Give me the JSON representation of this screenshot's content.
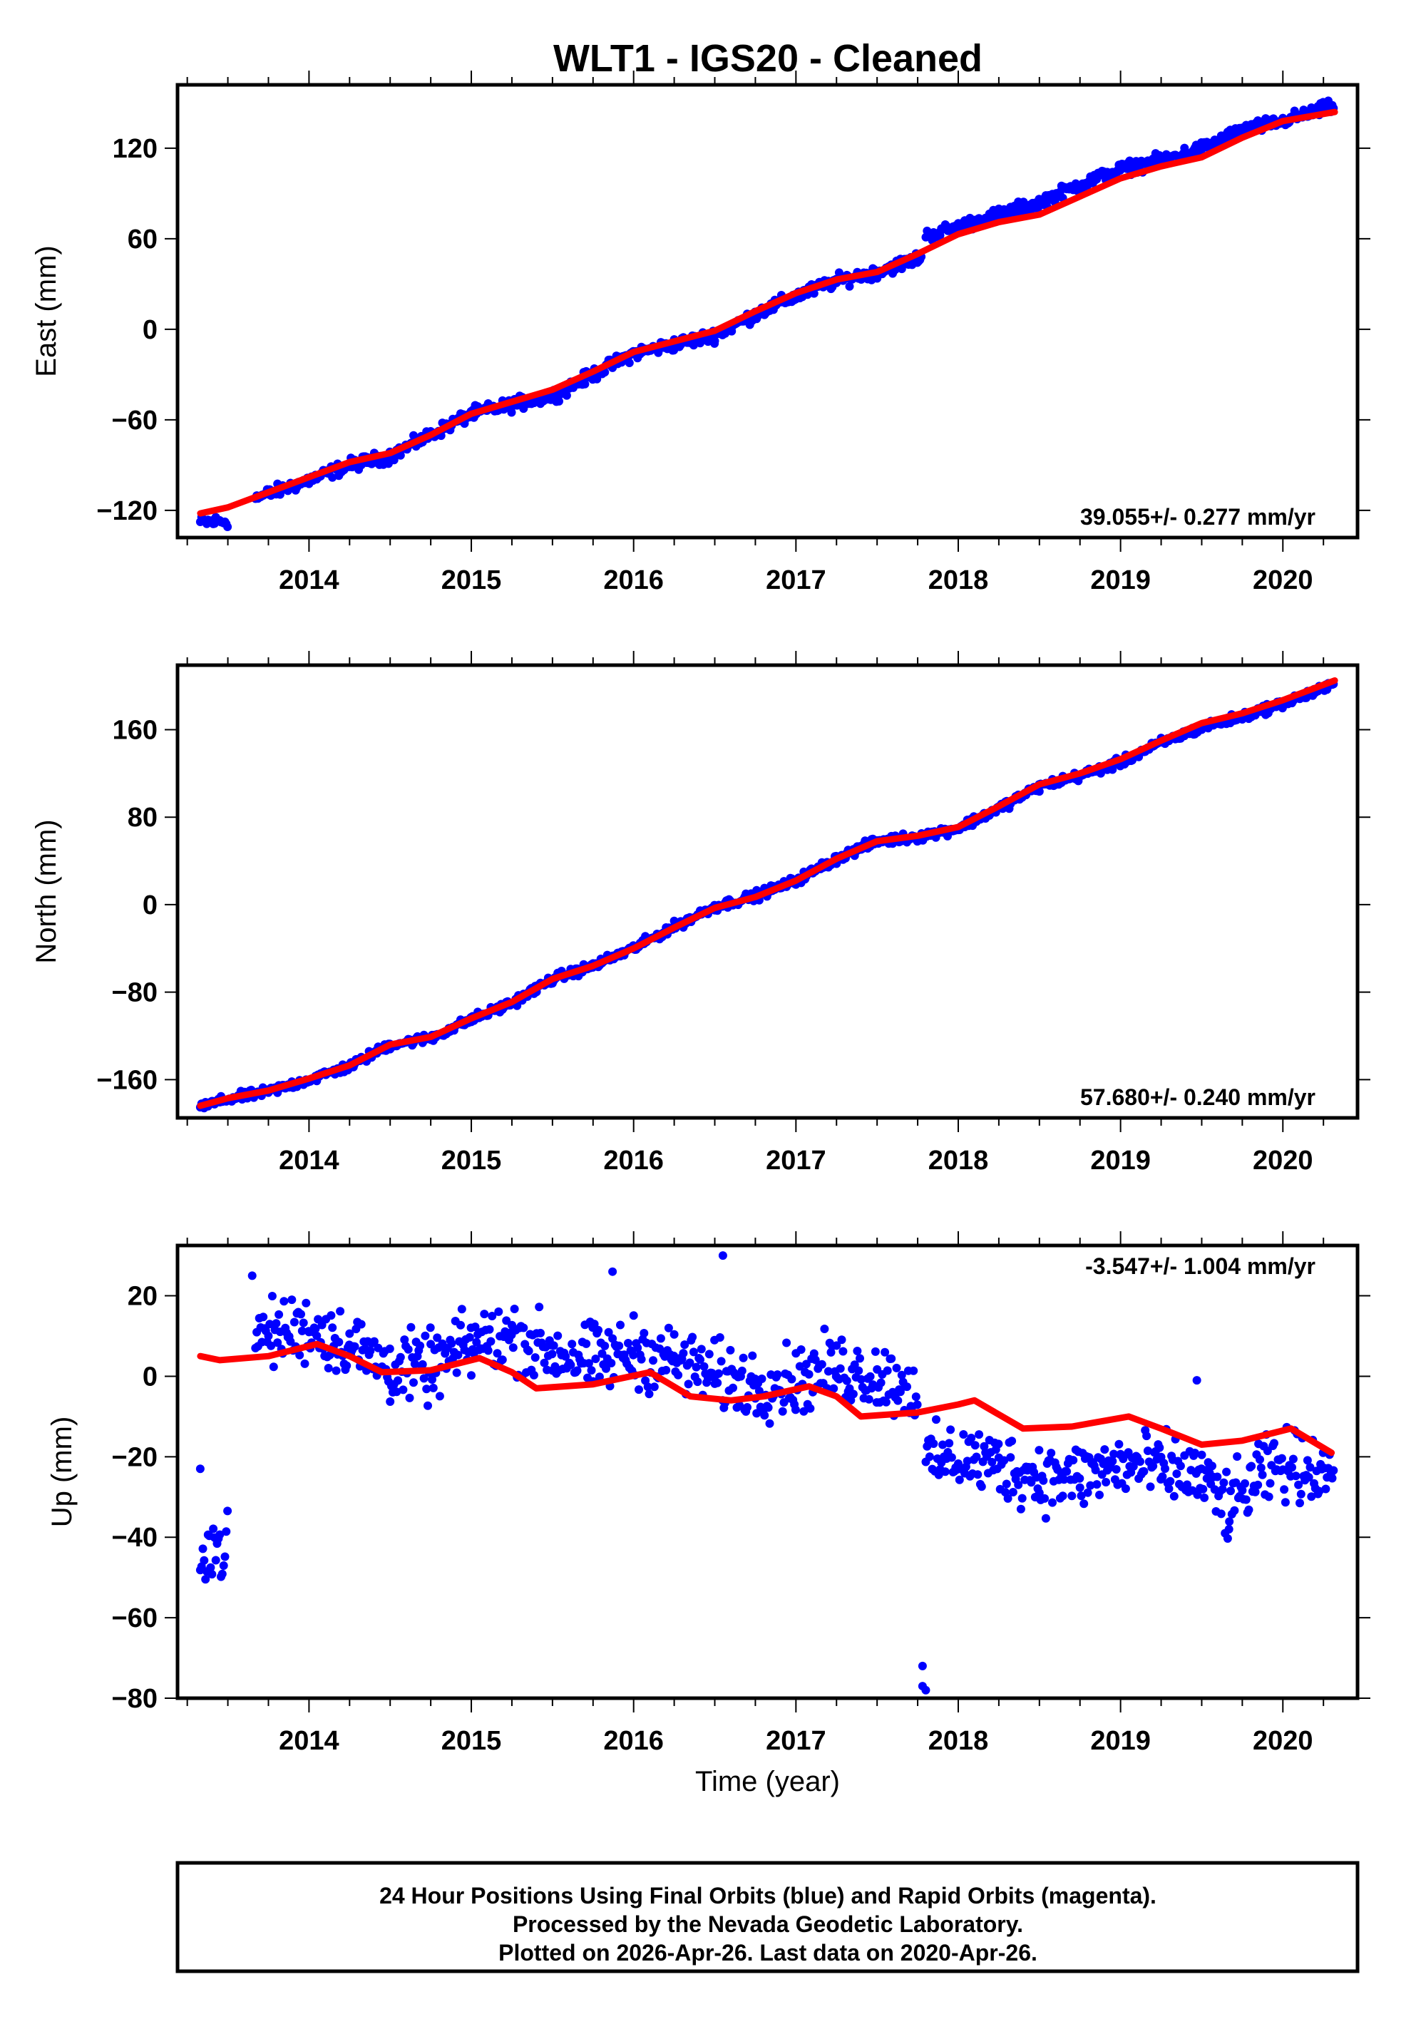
{
  "chart_data": [
    {
      "type": "scatter",
      "title": "WLT1  - IGS20 - Cleaned",
      "ylabel": "East (mm)",
      "xlabel": "",
      "rate": "39.055+/- 0.277 mm/yr",
      "xlim": [
        2013.19,
        2020.46
      ],
      "ylim": [
        -138,
        162
      ],
      "yticks": [
        -120,
        -60,
        0,
        60,
        120
      ],
      "xticks": [
        2014,
        2015,
        2016,
        2017,
        2018,
        2019,
        2020
      ],
      "noise": 3,
      "observed_color": "#0000ff",
      "model_color": "#ff0000",
      "observed": [
        [
          2013.33,
          -128
        ],
        [
          2013.5,
          -127
        ],
        null,
        [
          2013.67,
          -112
        ],
        [
          2014.0,
          -100
        ],
        [
          2014.25,
          -90
        ],
        [
          2014.5,
          -84
        ],
        [
          2014.75,
          -70
        ],
        [
          2015.0,
          -56
        ],
        [
          2015.25,
          -50
        ],
        [
          2015.5,
          -44
        ],
        [
          2015.75,
          -30
        ],
        [
          2016.0,
          -16
        ],
        [
          2016.25,
          -10
        ],
        [
          2016.5,
          -4
        ],
        [
          2016.75,
          10
        ],
        [
          2017.0,
          22
        ],
        [
          2017.25,
          32
        ],
        [
          2017.5,
          38
        ],
        [
          2017.78,
          48
        ],
        null,
        [
          2017.8,
          62
        ],
        [
          2018.0,
          68
        ],
        [
          2018.25,
          76
        ],
        [
          2018.5,
          84
        ],
        [
          2018.75,
          96
        ],
        [
          2019.0,
          106
        ],
        [
          2019.25,
          112
        ],
        [
          2019.5,
          120
        ],
        [
          2019.75,
          132
        ],
        [
          2020.0,
          138
        ],
        [
          2020.32,
          148
        ]
      ],
      "model": [
        [
          2013.33,
          -122
        ],
        [
          2013.5,
          -118
        ],
        [
          2013.75,
          -108
        ],
        [
          2014.0,
          -98
        ],
        [
          2014.25,
          -88
        ],
        [
          2014.5,
          -82
        ],
        [
          2014.75,
          -70
        ],
        [
          2015.0,
          -56
        ],
        [
          2015.25,
          -48
        ],
        [
          2015.5,
          -40
        ],
        [
          2015.75,
          -28
        ],
        [
          2016.0,
          -15
        ],
        [
          2016.25,
          -8
        ],
        [
          2016.5,
          -1
        ],
        [
          2016.75,
          12
        ],
        [
          2017.0,
          24
        ],
        [
          2017.25,
          33
        ],
        [
          2017.5,
          38
        ],
        [
          2017.75,
          50
        ],
        [
          2018.0,
          63
        ],
        [
          2018.25,
          71
        ],
        [
          2018.5,
          76
        ],
        [
          2018.75,
          88
        ],
        [
          2019.0,
          100
        ],
        [
          2019.25,
          108
        ],
        [
          2019.5,
          114
        ],
        [
          2019.75,
          127
        ],
        [
          2020.0,
          138
        ],
        [
          2020.32,
          144
        ]
      ],
      "outliers": []
    },
    {
      "type": "scatter",
      "ylabel": "North (mm)",
      "xlabel": "",
      "rate": "57.680+/- 0.240 mm/yr",
      "xlim": [
        2013.19,
        2020.46
      ],
      "ylim": [
        -195,
        219
      ],
      "yticks": [
        -160,
        -80,
        0,
        80,
        160
      ],
      "xticks": [
        2014,
        2015,
        2016,
        2017,
        2018,
        2019,
        2020
      ],
      "noise": 3,
      "observed_color": "#0000ff",
      "model_color": "#ff0000",
      "observed": [
        [
          2013.33,
          -185
        ],
        [
          2013.5,
          -178
        ],
        [
          2013.75,
          -171
        ],
        [
          2014.0,
          -160
        ],
        [
          2014.25,
          -148
        ],
        [
          2014.5,
          -128
        ],
        [
          2014.75,
          -122
        ],
        [
          2015.0,
          -105
        ],
        [
          2015.25,
          -90
        ],
        [
          2015.5,
          -68
        ],
        [
          2015.75,
          -56
        ],
        [
          2016.0,
          -40
        ],
        [
          2016.25,
          -20
        ],
        [
          2016.5,
          -2
        ],
        [
          2016.75,
          8
        ],
        [
          2017.0,
          22
        ],
        [
          2017.25,
          42
        ],
        [
          2017.5,
          58
        ],
        [
          2017.75,
          62
        ],
        [
          2018.0,
          70
        ],
        [
          2018.25,
          88
        ],
        [
          2018.5,
          108
        ],
        [
          2018.75,
          118
        ],
        [
          2019.0,
          130
        ],
        [
          2019.25,
          148
        ],
        [
          2019.5,
          162
        ],
        [
          2019.75,
          172
        ],
        [
          2020.0,
          184
        ],
        [
          2020.32,
          201
        ]
      ],
      "model": [
        [
          2013.33,
          -184
        ],
        [
          2013.5,
          -177
        ],
        [
          2013.75,
          -170
        ],
        [
          2014.0,
          -159
        ],
        [
          2014.25,
          -147
        ],
        [
          2014.5,
          -128
        ],
        [
          2014.75,
          -121
        ],
        [
          2015.0,
          -104
        ],
        [
          2015.25,
          -89
        ],
        [
          2015.5,
          -68
        ],
        [
          2015.75,
          -56
        ],
        [
          2016.0,
          -40
        ],
        [
          2016.25,
          -21
        ],
        [
          2016.5,
          -3
        ],
        [
          2016.75,
          7
        ],
        [
          2017.0,
          22
        ],
        [
          2017.25,
          42
        ],
        [
          2017.5,
          58
        ],
        [
          2017.75,
          63
        ],
        [
          2018.0,
          71
        ],
        [
          2018.25,
          90
        ],
        [
          2018.5,
          110
        ],
        [
          2018.75,
          120
        ],
        [
          2019.0,
          133
        ],
        [
          2019.25,
          150
        ],
        [
          2019.5,
          166
        ],
        [
          2019.75,
          175
        ],
        [
          2020.0,
          187
        ],
        [
          2020.32,
          205
        ]
      ],
      "outliers": []
    },
    {
      "type": "scatter",
      "ylabel": "Up (mm)",
      "xlabel": "Time (year)",
      "rate": "-3.547+/- 1.004 mm/yr",
      "xlim": [
        2013.19,
        2020.46
      ],
      "ylim": [
        -80,
        32.5
      ],
      "yticks": [
        -80,
        -60,
        -40,
        -20,
        0,
        20
      ],
      "xticks": [
        2014,
        2015,
        2016,
        2017,
        2018,
        2019,
        2020
      ],
      "noise": 6,
      "observed_color": "#0000ff",
      "model_color": "#ff0000",
      "observed": [
        [
          2013.33,
          -42
        ],
        [
          2013.5,
          -43
        ],
        null,
        [
          2013.67,
          10
        ],
        [
          2014.0,
          12
        ],
        [
          2014.25,
          8
        ],
        [
          2014.5,
          2
        ],
        [
          2014.75,
          2
        ],
        [
          2015.0,
          8
        ],
        [
          2015.25,
          10
        ],
        [
          2015.5,
          6
        ],
        [
          2015.75,
          4
        ],
        [
          2016.0,
          6
        ],
        [
          2016.25,
          4
        ],
        [
          2016.5,
          0
        ],
        [
          2016.75,
          -2
        ],
        [
          2017.0,
          -1
        ],
        [
          2017.25,
          2
        ],
        [
          2017.5,
          0
        ],
        [
          2017.75,
          -3
        ],
        null,
        [
          2017.8,
          -22
        ],
        [
          2018.0,
          -20
        ],
        [
          2018.25,
          -22
        ],
        [
          2018.5,
          -25
        ],
        [
          2018.75,
          -25
        ],
        [
          2019.0,
          -22
        ],
        [
          2019.25,
          -23
        ],
        [
          2019.5,
          -25
        ],
        [
          2019.67,
          -33
        ],
        [
          2019.85,
          -25
        ],
        [
          2020.0,
          -22
        ],
        [
          2020.32,
          -23
        ]
      ],
      "model": [
        [
          2013.33,
          5
        ],
        [
          2013.45,
          4
        ],
        [
          2013.75,
          5
        ],
        [
          2014.05,
          8
        ],
        [
          2014.25,
          5
        ],
        [
          2014.45,
          1
        ],
        [
          2014.75,
          1.5
        ],
        [
          2015.05,
          4.5
        ],
        [
          2015.25,
          1
        ],
        [
          2015.4,
          -3
        ],
        [
          2015.75,
          -2
        ],
        [
          2016.1,
          1
        ],
        [
          2016.35,
          -5
        ],
        [
          2016.6,
          -6
        ],
        [
          2016.8,
          -5
        ],
        [
          2017.08,
          -2.5
        ],
        [
          2017.25,
          -5
        ],
        [
          2017.4,
          -10
        ],
        [
          2017.75,
          -9
        ],
        [
          2018.0,
          -7
        ],
        [
          2018.1,
          -6
        ],
        [
          2018.4,
          -13
        ],
        [
          2018.7,
          -12.5
        ],
        [
          2019.05,
          -10
        ],
        [
          2019.25,
          -13
        ],
        [
          2019.5,
          -17
        ],
        [
          2019.75,
          -16
        ],
        [
          2020.05,
          -13
        ],
        [
          2020.3,
          -19
        ]
      ],
      "outliers": [
        [
          2017.78,
          -72
        ],
        [
          2017.78,
          -77
        ],
        [
          2017.8,
          -78
        ],
        [
          2016.55,
          30
        ],
        [
          2013.65,
          25
        ],
        [
          2015.87,
          26
        ],
        [
          2013.33,
          -23
        ],
        [
          2019.47,
          -1
        ]
      ]
    }
  ],
  "footer": {
    "line1": "24 Hour Positions Using Final Orbits (blue) and Rapid Orbits (magenta).",
    "line2": "Processed by the Nevada Geodetic Laboratory.",
    "line3": "Plotted on 2026-Apr-26. Last data on 2020-Apr-26."
  }
}
